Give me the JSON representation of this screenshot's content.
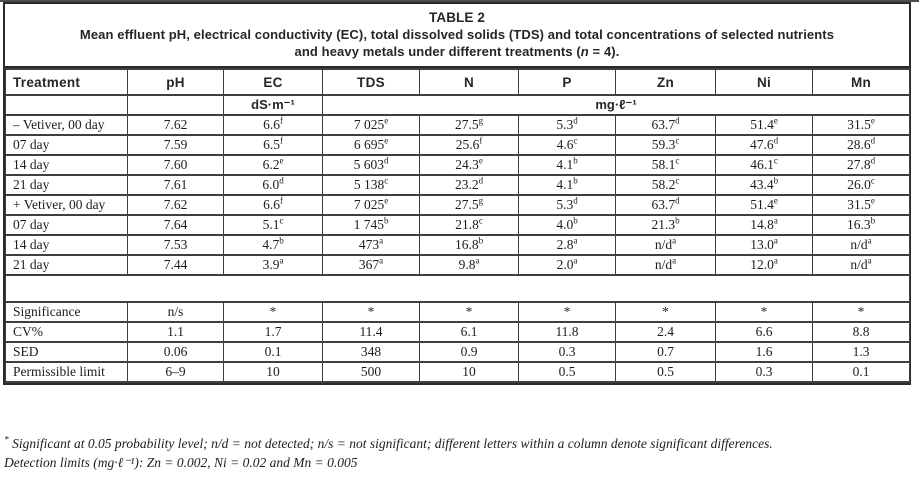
{
  "page": {
    "title": "TABLE 2",
    "caption_line1": "Mean effluent pH, electrical conductivity (EC), total dissolved solids (TDS) and total concentrations of selected nutrients",
    "caption_line2_pre": "and heavy metals under different treatments (",
    "caption_italic_n": "n",
    "caption_line2_post": " = 4)."
  },
  "table": {
    "columns": [
      "Treatment",
      "pH",
      "EC",
      "TDS",
      "N",
      "P",
      "Zn",
      "Ni",
      "Mn"
    ],
    "unit_ec": "dS·m⁻¹",
    "unit_mg": "mg·ℓ⁻¹",
    "rows": [
      [
        "– Vetiver, 00 day",
        "7.62",
        "6.6^f",
        "7 025^e",
        "27.5^g",
        "5.3^d",
        "63.7^d",
        "51.4^e",
        "31.5^e"
      ],
      [
        "07 day",
        "7.59",
        "6.5^f",
        "6 695^e",
        "25.6^f",
        "4.6^c",
        "59.3^c",
        "47.6^d",
        "28.6^d"
      ],
      [
        "14 day",
        "7.60",
        "6.2^e",
        "5 603^d",
        "24.3^e",
        "4.1^b",
        "58.1^c",
        "46.1^c",
        "27.8^d"
      ],
      [
        "21 day",
        "7.61",
        "6.0^d",
        "5 138^c",
        "23.2^d",
        "4.1^b",
        "58.2^c",
        "43.4^b",
        "26.0^c"
      ],
      [
        "+ Vetiver, 00 day",
        "7.62",
        "6.6^f",
        "7 025^e",
        "27.5^g",
        "5.3^d",
        "63.7^d",
        "51.4^e",
        "31.5^e"
      ],
      [
        "07 day",
        "7.64",
        "5.1^c",
        "1 745^b",
        "21.8^c",
        "4.0^b",
        "21.3^b",
        "14.8^a",
        "16.3^b"
      ],
      [
        "14 day",
        "7.53",
        "4.7^b",
        "473^a",
        "16.8^b",
        "2.8^a",
        "n/d^a",
        "13.0^a",
        "n/d^a"
      ],
      [
        "21 day",
        "7.44",
        "3.9^a",
        "367^a",
        "9.8^a",
        "2.0^a",
        "n/d^a",
        "12.0^a",
        "n/d^a"
      ]
    ],
    "stats": [
      [
        "Significance",
        "n/s",
        "*",
        "*",
        "*",
        "*",
        "*",
        "*",
        "*"
      ],
      [
        "CV%",
        "1.1",
        "1.7",
        "11.4",
        "6.1",
        "11.8",
        "2.4",
        "6.6",
        "8.8"
      ],
      [
        "SED",
        "0.06",
        "0.1",
        "348",
        "0.9",
        "0.3",
        "0.7",
        "1.6",
        "1.3"
      ],
      [
        "Permissible limit",
        "6–9",
        "10",
        "500",
        "10",
        "0.5",
        "0.5",
        "0.3",
        "0.1"
      ]
    ]
  },
  "footnotes": {
    "marker": "*",
    "line1": " Significant at 0.05 probability level; n/d = not detected; n/s = not significant; different letters within a column denote significant differences.",
    "line2": "Detection limits (mg·ℓ⁻¹): Zn = 0.002, Ni = 0.02 and Mn = 0.005"
  },
  "colors": {
    "border": "#3f3f3f",
    "frame": "#2b2b2b",
    "text": "#1d1d1d",
    "background": "#ffffff"
  }
}
